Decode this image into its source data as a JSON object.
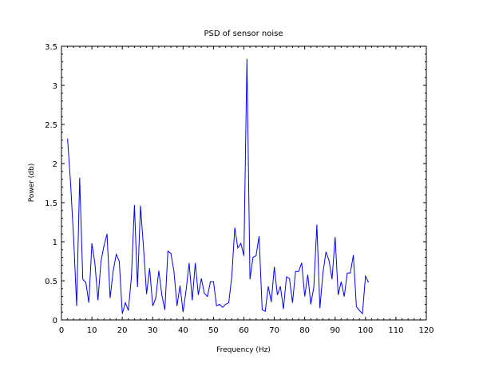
{
  "chart_data": {
    "type": "line",
    "title": "PSD of sensor noise",
    "xlabel": "Frequency (Hz)",
    "ylabel": "Power (db)",
    "xlim": [
      0,
      120
    ],
    "ylim": [
      0,
      3.5
    ],
    "xticks": [
      0,
      10,
      20,
      30,
      40,
      50,
      60,
      70,
      80,
      90,
      100,
      110,
      120
    ],
    "yticks": [
      0,
      0.5,
      1,
      1.5,
      2,
      2.5,
      3,
      3.5
    ],
    "xtick_labels": [
      "0",
      "10",
      "20",
      "30",
      "40",
      "50",
      "60",
      "70",
      "80",
      "90",
      "100",
      "110",
      "120"
    ],
    "ytick_labels": [
      "0",
      "0.5",
      "1",
      "1.5",
      "2",
      "2.5",
      "3",
      "3.5"
    ],
    "grid": false,
    "line_color": "#0000ff",
    "series": [
      {
        "x": [
          2,
          3,
          4,
          5,
          6,
          7,
          8,
          9,
          10,
          11,
          12,
          13,
          14,
          15,
          16,
          17,
          18,
          19,
          20,
          21,
          22,
          23,
          24,
          25,
          26,
          27,
          28,
          29,
          30,
          31,
          32,
          33,
          34,
          35,
          36,
          37,
          38,
          39,
          40,
          41,
          42,
          43,
          44,
          45,
          46,
          47,
          48,
          49,
          50,
          51,
          52,
          53,
          54,
          55,
          56,
          57,
          58,
          59,
          60,
          61,
          62,
          63,
          64,
          65,
          66,
          67,
          68,
          69,
          70,
          71,
          72,
          73,
          74,
          75,
          76,
          77,
          78,
          79,
          80,
          81,
          82,
          83,
          84,
          85,
          86,
          87,
          88,
          89,
          90,
          91,
          92,
          93,
          94,
          95,
          96,
          97,
          98,
          99,
          100,
          101
        ],
        "values": [
          2.32,
          1.75,
          1.05,
          0.18,
          1.82,
          0.52,
          0.48,
          0.22,
          0.98,
          0.72,
          0.25,
          0.75,
          0.95,
          1.1,
          0.28,
          0.62,
          0.84,
          0.75,
          0.08,
          0.22,
          0.12,
          0.55,
          1.47,
          0.42,
          1.46,
          0.92,
          0.33,
          0.66,
          0.18,
          0.28,
          0.63,
          0.32,
          0.13,
          0.88,
          0.85,
          0.62,
          0.18,
          0.44,
          0.1,
          0.38,
          0.73,
          0.25,
          0.73,
          0.32,
          0.53,
          0.34,
          0.3,
          0.49,
          0.49,
          0.18,
          0.2,
          0.16,
          0.2,
          0.22,
          0.55,
          1.18,
          0.92,
          0.98,
          0.82,
          3.34,
          0.52,
          0.8,
          0.82,
          1.07,
          0.13,
          0.11,
          0.43,
          0.23,
          0.68,
          0.32,
          0.43,
          0.14,
          0.55,
          0.53,
          0.22,
          0.62,
          0.62,
          0.73,
          0.3,
          0.58,
          0.2,
          0.42,
          1.22,
          0.15,
          0.6,
          0.87,
          0.76,
          0.52,
          1.06,
          0.32,
          0.49,
          0.3,
          0.6,
          0.6,
          0.83,
          0.17,
          0.12,
          0.08,
          0.56,
          0.48
        ]
      }
    ]
  }
}
